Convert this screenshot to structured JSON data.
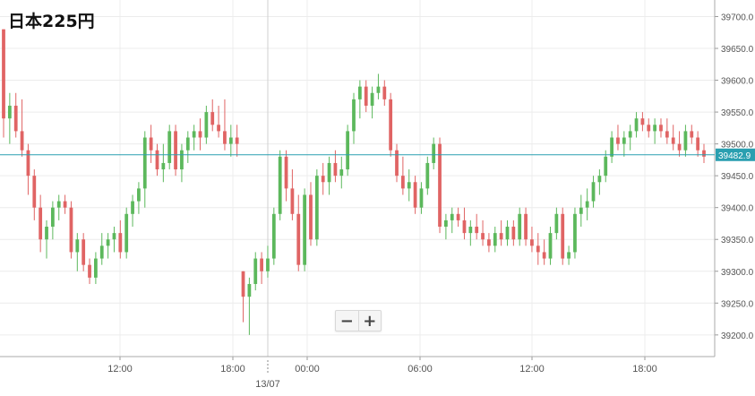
{
  "chart_data": {
    "type": "candlestick",
    "title": "日本225円",
    "y_ticks": [
      "39700.0",
      "39650.0",
      "39600.0",
      "39550.0",
      "39500.0",
      "39450.0",
      "39400.0",
      "39350.0",
      "39300.0",
      "39250.0",
      "39200.0"
    ],
    "x_ticks": [
      "12:00",
      "18:00",
      "00:00",
      "06:00",
      "12:00",
      "18:00"
    ],
    "date_label": "13/07",
    "ylim": [
      39166,
      39726
    ],
    "current_price": 39482.9,
    "colors": {
      "up": "#5cb85c",
      "down": "#e06464",
      "line": "#2a9fb0",
      "grid": "#ececec"
    },
    "candles": [
      [
        39680,
        39680,
        39510,
        39540
      ],
      [
        39540,
        39580,
        39500,
        39560
      ],
      [
        39560,
        39580,
        39510,
        39520
      ],
      [
        39520,
        39570,
        39480,
        39490
      ],
      [
        39490,
        39500,
        39420,
        39450
      ],
      [
        39450,
        39460,
        39380,
        39400
      ],
      [
        39400,
        39420,
        39330,
        39350
      ],
      [
        39350,
        39380,
        39320,
        39370
      ],
      [
        39370,
        39410,
        39350,
        39400
      ],
      [
        39400,
        39420,
        39380,
        39410
      ],
      [
        39410,
        39420,
        39390,
        39400
      ],
      [
        39400,
        39410,
        39320,
        39330
      ],
      [
        39330,
        39360,
        39300,
        39350
      ],
      [
        39350,
        39360,
        39300,
        39310
      ],
      [
        39310,
        39320,
        39280,
        39290
      ],
      [
        39290,
        39330,
        39280,
        39320
      ],
      [
        39320,
        39360,
        39310,
        39340
      ],
      [
        39340,
        39360,
        39320,
        39350
      ],
      [
        39350,
        39370,
        39330,
        39360
      ],
      [
        39360,
        39380,
        39320,
        39330
      ],
      [
        39330,
        39400,
        39320,
        39390
      ],
      [
        39390,
        39420,
        39370,
        39410
      ],
      [
        39410,
        39440,
        39390,
        39430
      ],
      [
        39430,
        39520,
        39400,
        39510
      ],
      [
        39510,
        39530,
        39470,
        39490
      ],
      [
        39490,
        39500,
        39450,
        39460
      ],
      [
        39460,
        39500,
        39440,
        39470
      ],
      [
        39470,
        39530,
        39460,
        39520
      ],
      [
        39520,
        39530,
        39450,
        39460
      ],
      [
        39460,
        39500,
        39440,
        39490
      ],
      [
        39490,
        39520,
        39470,
        39510
      ],
      [
        39510,
        39530,
        39490,
        39520
      ],
      [
        39520,
        39540,
        39490,
        39510
      ],
      [
        39510,
        39560,
        39500,
        39550
      ],
      [
        39550,
        39570,
        39520,
        39530
      ],
      [
        39530,
        39560,
        39510,
        39520
      ],
      [
        39520,
        39570,
        39490,
        39500
      ],
      [
        39500,
        39530,
        39480,
        39510
      ],
      [
        39510,
        39530,
        39480,
        39500
      ],
      [
        39300,
        39300,
        39220,
        39260
      ],
      [
        39260,
        39290,
        39200,
        39280
      ],
      [
        39280,
        39330,
        39270,
        39320
      ],
      [
        39320,
        39330,
        39280,
        39300
      ],
      [
        39300,
        39340,
        39290,
        39320
      ],
      [
        39320,
        39400,
        39310,
        39390
      ],
      [
        39390,
        39490,
        39380,
        39480
      ],
      [
        39480,
        39490,
        39410,
        39430
      ],
      [
        39430,
        39460,
        39380,
        39390
      ],
      [
        39390,
        39420,
        39300,
        39310
      ],
      [
        39310,
        39430,
        39300,
        39420
      ],
      [
        39420,
        39440,
        39340,
        39350
      ],
      [
        39350,
        39460,
        39340,
        39450
      ],
      [
        39450,
        39470,
        39420,
        39440
      ],
      [
        39440,
        39480,
        39420,
        39470
      ],
      [
        39470,
        39490,
        39440,
        39450
      ],
      [
        39450,
        39480,
        39430,
        39460
      ],
      [
        39460,
        39530,
        39450,
        39520
      ],
      [
        39520,
        39580,
        39500,
        39570
      ],
      [
        39570,
        39600,
        39540,
        39590
      ],
      [
        39590,
        39600,
        39550,
        39560
      ],
      [
        39560,
        39590,
        39540,
        39580
      ],
      [
        39580,
        39610,
        39570,
        39590
      ],
      [
        39590,
        39600,
        39560,
        39570
      ],
      [
        39570,
        39580,
        39480,
        39490
      ],
      [
        39490,
        39500,
        39440,
        39450
      ],
      [
        39450,
        39480,
        39420,
        39430
      ],
      [
        39430,
        39460,
        39410,
        39440
      ],
      [
        39440,
        39450,
        39390,
        39400
      ],
      [
        39400,
        39440,
        39390,
        39430
      ],
      [
        39430,
        39480,
        39420,
        39470
      ],
      [
        39470,
        39510,
        39460,
        39500
      ],
      [
        39500,
        39510,
        39360,
        39370
      ],
      [
        39370,
        39390,
        39350,
        39380
      ],
      [
        39380,
        39400,
        39360,
        39390
      ],
      [
        39390,
        39400,
        39370,
        39380
      ],
      [
        39380,
        39400,
        39350,
        39360
      ],
      [
        39360,
        39380,
        39340,
        39370
      ],
      [
        39370,
        39390,
        39350,
        39360
      ],
      [
        39360,
        39380,
        39340,
        39350
      ],
      [
        39350,
        39360,
        39330,
        39340
      ],
      [
        39340,
        39370,
        39330,
        39360
      ],
      [
        39360,
        39380,
        39340,
        39350
      ],
      [
        39350,
        39380,
        39340,
        39370
      ],
      [
        39370,
        39380,
        39340,
        39350
      ],
      [
        39350,
        39400,
        39340,
        39390
      ],
      [
        39390,
        39400,
        39340,
        39350
      ],
      [
        39350,
        39370,
        39330,
        39340
      ],
      [
        39340,
        39360,
        39310,
        39330
      ],
      [
        39330,
        39350,
        39310,
        39320
      ],
      [
        39320,
        39370,
        39310,
        39360
      ],
      [
        39360,
        39400,
        39350,
        39390
      ],
      [
        39390,
        39400,
        39310,
        39320
      ],
      [
        39320,
        39340,
        39310,
        39330
      ],
      [
        39330,
        39400,
        39320,
        39390
      ],
      [
        39390,
        39420,
        39370,
        39400
      ],
      [
        39400,
        39430,
        39380,
        39410
      ],
      [
        39410,
        39450,
        39400,
        39440
      ],
      [
        39440,
        39460,
        39420,
        39450
      ],
      [
        39450,
        39490,
        39440,
        39480
      ],
      [
        39480,
        39520,
        39470,
        39510
      ],
      [
        39510,
        39530,
        39490,
        39500
      ],
      [
        39500,
        39520,
        39480,
        39510
      ],
      [
        39510,
        39530,
        39490,
        39520
      ],
      [
        39520,
        39550,
        39510,
        39540
      ],
      [
        39540,
        39550,
        39520,
        39530
      ],
      [
        39530,
        39540,
        39510,
        39520
      ],
      [
        39520,
        39540,
        39500,
        39530
      ],
      [
        39530,
        39540,
        39510,
        39520
      ],
      [
        39520,
        39540,
        39500,
        39510
      ],
      [
        39510,
        39530,
        39490,
        39500
      ],
      [
        39500,
        39520,
        39480,
        39490
      ],
      [
        39490,
        39530,
        39480,
        39520
      ],
      [
        39520,
        39530,
        39500,
        39510
      ],
      [
        39510,
        39520,
        39480,
        39490
      ],
      [
        39490,
        39500,
        39470,
        39480
      ]
    ]
  },
  "zoom": {
    "minus_label": "−",
    "plus_label": "+"
  }
}
